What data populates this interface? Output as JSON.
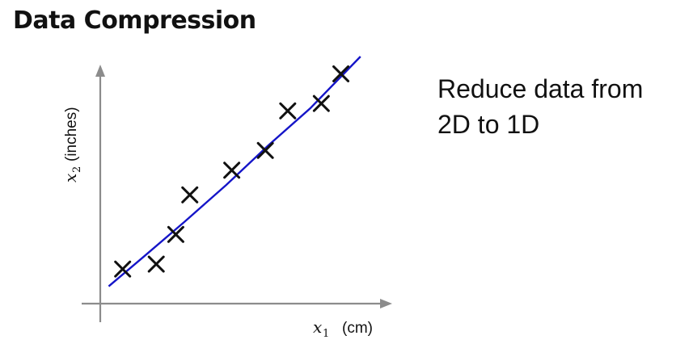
{
  "title": "Data Compression",
  "description_lines": [
    "Reduce data from",
    "2D to 1D"
  ],
  "colors": {
    "fit_line": "#1515c8",
    "markers": "#111111",
    "axes": "#8c8c8c"
  },
  "chart_data": {
    "type": "scatter",
    "title": "",
    "xlabel": {
      "var": "x",
      "sub": "1",
      "unit": "(cm)"
    },
    "ylabel": {
      "var": "x",
      "sub": "2",
      "unit": "(inches)"
    },
    "xlim": [
      0,
      10
    ],
    "ylim": [
      0,
      10
    ],
    "grid": false,
    "marker": "x",
    "points": [
      {
        "x": 0.8,
        "y": 1.4
      },
      {
        "x": 2.0,
        "y": 1.6
      },
      {
        "x": 2.7,
        "y": 2.8
      },
      {
        "x": 3.2,
        "y": 4.4
      },
      {
        "x": 4.7,
        "y": 5.4
      },
      {
        "x": 5.9,
        "y": 6.2
      },
      {
        "x": 6.7,
        "y": 7.8
      },
      {
        "x": 7.9,
        "y": 8.1
      },
      {
        "x": 8.6,
        "y": 9.3
      }
    ],
    "fit_line": [
      {
        "x": 0.3,
        "y": 0.7
      },
      {
        "x": 1.5,
        "y": 1.85
      },
      {
        "x": 3.0,
        "y": 3.3
      },
      {
        "x": 4.5,
        "y": 4.8
      },
      {
        "x": 6.0,
        "y": 6.4
      },
      {
        "x": 7.5,
        "y": 7.9
      },
      {
        "x": 9.3,
        "y": 10.0
      }
    ]
  }
}
